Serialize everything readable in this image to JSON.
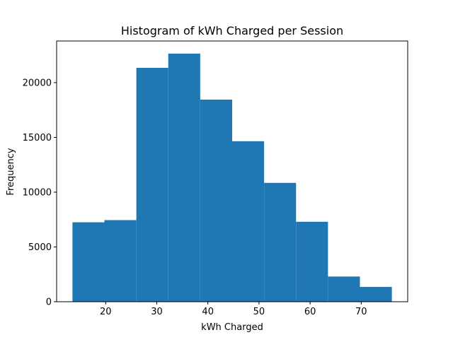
{
  "chart_data": {
    "type": "bar",
    "title": "Histogram of kWh Charged per Session",
    "xlabel": "kWh Charged",
    "ylabel": "Frequency",
    "bar_color": "#1f77b4",
    "grid": false,
    "legend": "none",
    "xlim": [
      10.4,
      79.1
    ],
    "ylim": [
      0,
      23800
    ],
    "x_ticks": [
      20,
      30,
      40,
      50,
      60,
      70
    ],
    "y_ticks": [
      0,
      5000,
      10000,
      15000,
      20000
    ],
    "bin_edges": [
      13.5,
      19.75,
      26.0,
      32.25,
      38.5,
      44.75,
      51.0,
      57.25,
      63.5,
      69.75,
      76.0
    ],
    "values": [
      7250,
      7450,
      21350,
      22650,
      18450,
      14650,
      10850,
      7300,
      2300,
      1350
    ]
  }
}
